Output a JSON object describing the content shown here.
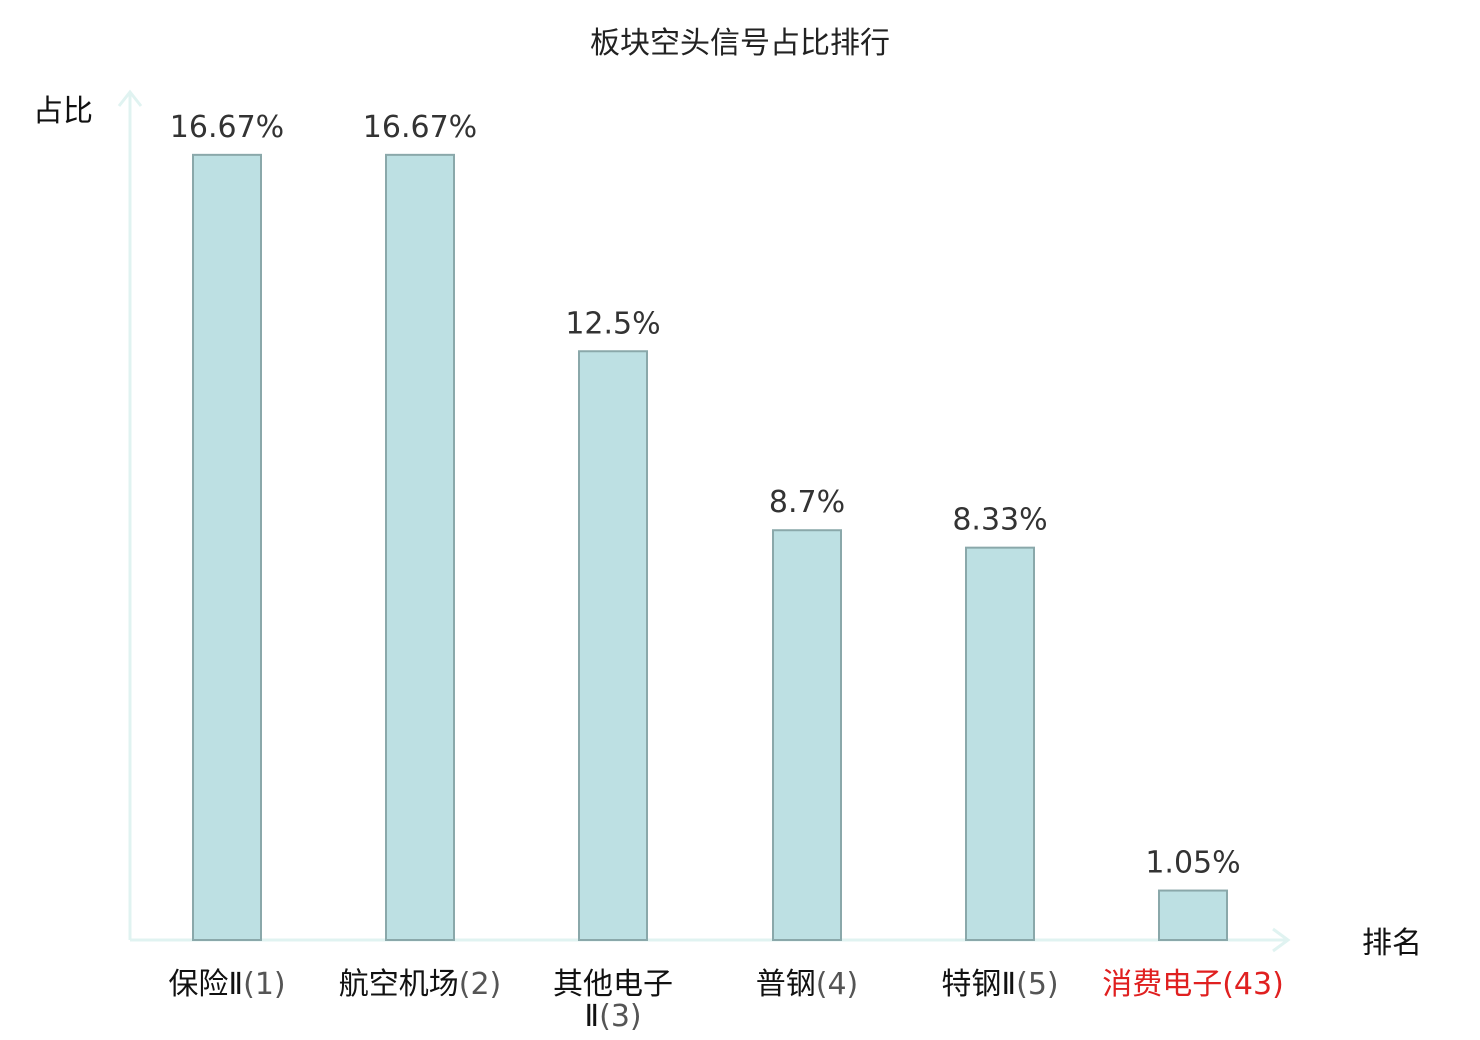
{
  "chart_data": {
    "type": "bar",
    "title": "板块空头信号占比排行",
    "ylabel": "占比",
    "xlabel": "排名",
    "ylim": [
      0,
      18
    ],
    "grid": false,
    "categories": [
      {
        "name": "保险Ⅱ",
        "rank": "(1)",
        "highlight": false
      },
      {
        "name": "航空机场",
        "rank": "(2)",
        "highlight": false
      },
      {
        "name": "其他电子Ⅱ",
        "name_line1": "其他电子",
        "name_line2": "Ⅱ",
        "rank": "(3)",
        "highlight": false
      },
      {
        "name": "普钢",
        "rank": "(4)",
        "highlight": false
      },
      {
        "name": "特钢Ⅱ",
        "rank": "(5)",
        "highlight": false
      },
      {
        "name": "消费电子",
        "rank": "(43)",
        "highlight": true
      }
    ],
    "values": [
      16.67,
      16.67,
      12.5,
      8.7,
      8.33,
      1.05
    ],
    "value_labels": [
      "16.67%",
      "16.67%",
      "12.5%",
      "8.7%",
      "8.33%",
      "1.05%"
    ],
    "colors": {
      "bar_fill": "#bde0e3",
      "bar_stroke": "#8aa8aa",
      "axis": "#e0f3f1",
      "label_normal": "#111111",
      "label_highlight": "#e02020",
      "rank_normal": "#555555",
      "rank_highlight": "#e02020"
    }
  }
}
